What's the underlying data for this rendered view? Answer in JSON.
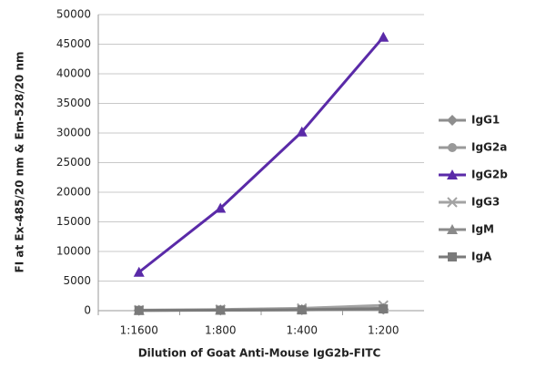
{
  "chart_data": {
    "type": "line",
    "x_label": "Dilution of Goat Anti-Mouse IgG2b-FITC",
    "y_label": "FI at Ex-485/20 nm & Em-528/20 nm",
    "categories": [
      "1:1600",
      "1:800",
      "1:400",
      "1:200"
    ],
    "series": [
      {
        "name": "IgG1",
        "color": "#8e8e8e",
        "marker": "diamond",
        "values": [
          60,
          90,
          150,
          250
        ]
      },
      {
        "name": "IgG2a",
        "color": "#999999",
        "marker": "circle",
        "values": [
          50,
          80,
          140,
          220
        ]
      },
      {
        "name": "IgG2b",
        "color": "#5a2aa8",
        "marker": "triangle",
        "values": [
          6500,
          17300,
          30200,
          46200
        ]
      },
      {
        "name": "IgG3",
        "color": "#a3a3a3",
        "marker": "x",
        "values": [
          100,
          200,
          400,
          900
        ]
      },
      {
        "name": "IgM",
        "color": "#8a8a8a",
        "marker": "triangle",
        "values": [
          50,
          100,
          200,
          400
        ]
      },
      {
        "name": "IgA",
        "color": "#7a7a7a",
        "marker": "square",
        "values": [
          40,
          80,
          130,
          300
        ]
      }
    ],
    "ylim": [
      0,
      50000
    ],
    "yticks": [
      0,
      5000,
      10000,
      15000,
      20000,
      25000,
      30000,
      35000,
      40000,
      45000,
      50000
    ],
    "grid": true,
    "legend": "right"
  }
}
